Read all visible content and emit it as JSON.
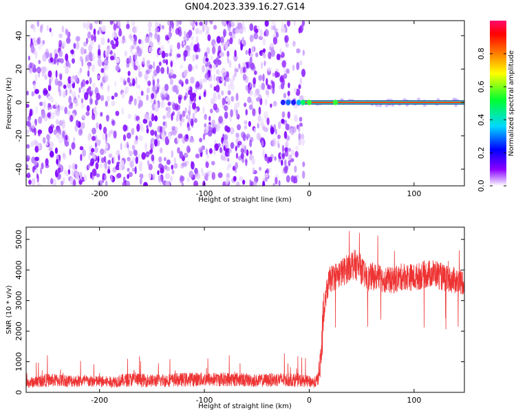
{
  "title": "GN04.2023.339.16.27.G14",
  "chart_data": [
    {
      "type": "heatmap",
      "panel": "spectrogram",
      "xlabel": "Height of straight line (km)",
      "ylabel": "Frequency (Hz)",
      "xlim": [
        -270,
        148
      ],
      "ylim": [
        -50,
        49
      ],
      "xticks": [
        -200,
        -100,
        0,
        100
      ],
      "yticks": [
        -40,
        -20,
        0,
        20,
        40
      ],
      "xtick_labels": [
        "-200",
        "-100",
        "0",
        "100"
      ],
      "ytick_labels": [
        "-40",
        "-20",
        "0",
        "20",
        "40"
      ],
      "noise_region_x": [
        -270,
        -5
      ],
      "noise_amplitude_range": [
        0.0,
        0.25
      ],
      "signal_line": {
        "x_start": -25,
        "x_end": 148,
        "frequency": 0,
        "amplitude": 0.95
      },
      "colorbar": {
        "label": "Normalized spectral amplitude",
        "range": [
          0.0,
          1.0
        ],
        "ticks": [
          0.0,
          0.2,
          0.4,
          0.6,
          0.8
        ],
        "tick_labels": [
          "0.0",
          "0.2",
          "0.4",
          "0.6",
          "0.8"
        ],
        "colormap": "gist_rainbow_reversed"
      }
    },
    {
      "type": "line",
      "panel": "snr",
      "xlabel": "Height of straight line (km)",
      "ylabel": "SNR (10 * v/v)",
      "xlim": [
        -270,
        148
      ],
      "ylim": [
        0,
        5400
      ],
      "xticks": [
        -200,
        -100,
        0,
        100
      ],
      "yticks": [
        0,
        1000,
        2000,
        3000,
        4000,
        5000
      ],
      "xtick_labels": [
        "-200",
        "-100",
        "0",
        "100"
      ],
      "ytick_labels": [
        "0",
        "1000",
        "2000",
        "3000",
        "4000",
        "5000"
      ],
      "color": "#ee3333",
      "series": [
        {
          "x": [
            -270,
            -250,
            -230,
            -210,
            -190,
            -170,
            -150,
            -130,
            -110,
            -90,
            -70,
            -50,
            -30,
            -10,
            0,
            5,
            8,
            10,
            12,
            14,
            16,
            18,
            20,
            25,
            30,
            35,
            40,
            45,
            50,
            55,
            60,
            70,
            80,
            90,
            100,
            110,
            120,
            130,
            140,
            148
          ],
          "values": [
            300,
            400,
            380,
            360,
            340,
            420,
            380,
            400,
            430,
            420,
            430,
            380,
            420,
            400,
            350,
            330,
            400,
            800,
            1500,
            2500,
            3200,
            3500,
            3700,
            3800,
            3900,
            4000,
            4200,
            4150,
            4000,
            3700,
            3800,
            3700,
            3650,
            3800,
            3750,
            3850,
            3900,
            3700,
            3650,
            3600
          ]
        }
      ]
    }
  ]
}
